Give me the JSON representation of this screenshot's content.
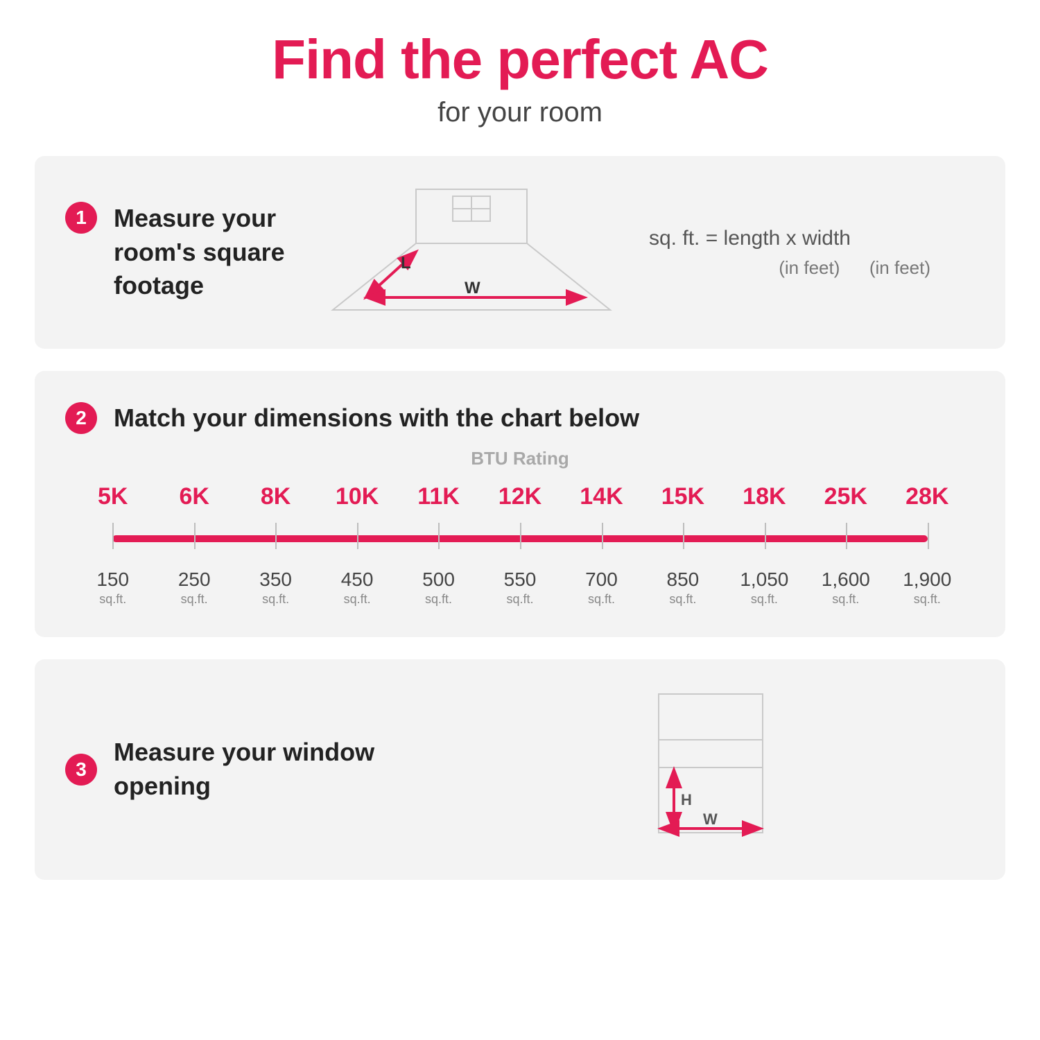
{
  "colors": {
    "accent": "#e31b54",
    "panel_bg": "#f3f3f3",
    "text_dark": "#222222",
    "text_mid": "#555555",
    "text_light": "#a8a8a8",
    "tick_gray": "#bdbdbd",
    "diagram_gray": "#c9c9c9"
  },
  "header": {
    "title": "Find the perfect AC",
    "subtitle": "for your room"
  },
  "step1": {
    "number": "1",
    "text": "Measure your room's square footage",
    "formula_top": "sq. ft. = length x width",
    "formula_bottom_left": "(in feet)",
    "formula_bottom_right": "(in feet)",
    "diagram": {
      "L_label": "L",
      "W_label": "W"
    }
  },
  "step2": {
    "number": "2",
    "text": "Match your dimensions with the chart below",
    "chart": {
      "caption": "BTU Rating",
      "btu_labels": [
        "5K",
        "6K",
        "8K",
        "10K",
        "11K",
        "12K",
        "14K",
        "15K",
        "18K",
        "25K",
        "28K"
      ],
      "sqft_values": [
        "150",
        "250",
        "350",
        "450",
        "500",
        "550",
        "700",
        "850",
        "1,050",
        "1,600",
        "1,900"
      ],
      "sqft_unit": "sq.ft.",
      "line_color": "#e31b54",
      "btu_color": "#e31b54",
      "tick_color": "#bdbdbd",
      "btu_fontsize": 34,
      "sqft_fontsize": 28,
      "unit_fontsize": 18
    }
  },
  "step3": {
    "number": "3",
    "text": "Measure your window opening",
    "diagram": {
      "H_label": "H",
      "W_label": "W"
    }
  }
}
